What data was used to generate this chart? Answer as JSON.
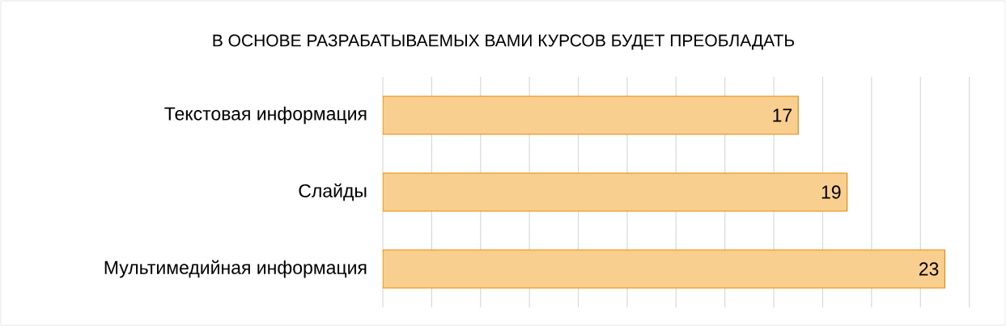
{
  "chart_data": {
    "type": "bar",
    "orientation": "horizontal",
    "title": "В ОСНОВЕ РАЗРАБАТЫВАЕМЫХ ВАМИ КУРСОВ БУДЕТ ПРЕОБЛАДАТЬ",
    "categories": [
      "Текстовая информация",
      "Слайды",
      "Мультимедийная информация"
    ],
    "values": [
      17,
      19,
      23
    ],
    "color": "#f9cf8f",
    "data_labels": true,
    "grid": "x",
    "tick_labels": "y"
  }
}
